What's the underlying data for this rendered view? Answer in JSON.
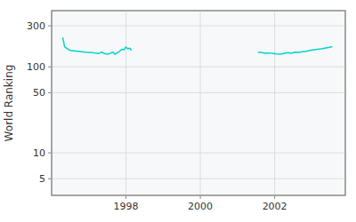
{
  "chart_data": {
    "type": "line",
    "y_label": "World Ranking",
    "log": "y",
    "grid": true,
    "xlim": [
      1996.0,
      2003.9
    ],
    "xticks": [
      1998,
      2000,
      2002
    ],
    "ylim": [
      3.2,
      450
    ],
    "yticks": [
      5,
      10,
      50,
      100,
      300
    ],
    "series": [
      {
        "color": "#00d4cc",
        "x": [
          1996.3,
          1996.35,
          1996.5,
          1996.7,
          1996.9,
          1997.0,
          1997.1,
          1997.15,
          1997.2,
          1997.25,
          1997.3,
          1997.35,
          1997.4,
          1997.45,
          1997.5,
          1997.55,
          1997.6,
          1997.65,
          1997.7,
          1997.75,
          1997.8,
          1997.85,
          1997.9,
          1997.95,
          1998.0,
          1998.05,
          1998.1,
          1998.15
        ],
        "values": [
          220,
          170,
          155,
          152,
          148,
          147,
          146,
          145,
          144,
          143,
          145,
          148,
          144,
          142,
          140,
          142,
          145,
          148,
          140,
          145,
          148,
          155,
          160,
          158,
          170,
          162,
          165,
          155
        ]
      },
      {
        "color": "#00d4cc",
        "x": [
          2001.55,
          2001.65,
          2001.75,
          2001.85,
          2001.95,
          2002.05,
          2002.15,
          2002.25,
          2002.35,
          2002.45,
          2002.55,
          2002.65,
          2002.75,
          2002.85,
          2002.95,
          2003.05,
          2003.15,
          2003.25,
          2003.35,
          2003.45,
          2003.55
        ],
        "values": [
          148,
          146,
          144,
          145,
          143,
          141,
          140,
          143,
          146,
          144,
          148,
          147,
          150,
          152,
          155,
          158,
          160,
          162,
          165,
          168,
          172
        ]
      }
    ]
  }
}
